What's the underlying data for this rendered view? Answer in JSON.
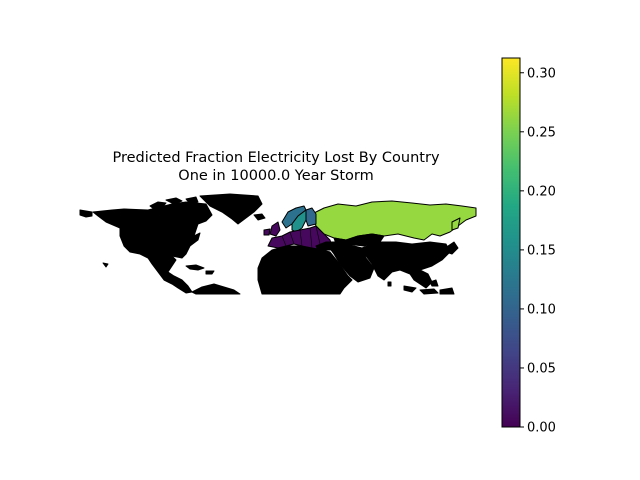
{
  "figure": {
    "title_line1": "Predicted Fraction Electricity Lost By Country",
    "title_line2": "One in 10000.0 Year Storm"
  },
  "map": {
    "projection": "equirectangular, cropped",
    "outline_color": "#000000",
    "land_fill": "#ffffff",
    "regions": [
      {
        "name": "Russia",
        "fraction_lost": 0.25,
        "color": "#95d840"
      },
      {
        "name": "Greenland (east tip)",
        "fraction_lost": 0.25,
        "color": "#95d840"
      },
      {
        "name": "Sweden",
        "fraction_lost": 0.17,
        "color": "#21918c"
      },
      {
        "name": "Norway",
        "fraction_lost": 0.11,
        "color": "#2c728e"
      },
      {
        "name": "Finland",
        "fraction_lost": 0.1,
        "color": "#31688e"
      },
      {
        "name": "Europe (others)",
        "fraction_lost": 0.02,
        "color": "#46085c"
      }
    ]
  },
  "colorbar": {
    "colormap": "viridis",
    "min": 0.0,
    "max": 0.3125,
    "ticks": [
      "0.00",
      "0.05",
      "0.10",
      "0.15",
      "0.20",
      "0.25",
      "0.30"
    ]
  }
}
